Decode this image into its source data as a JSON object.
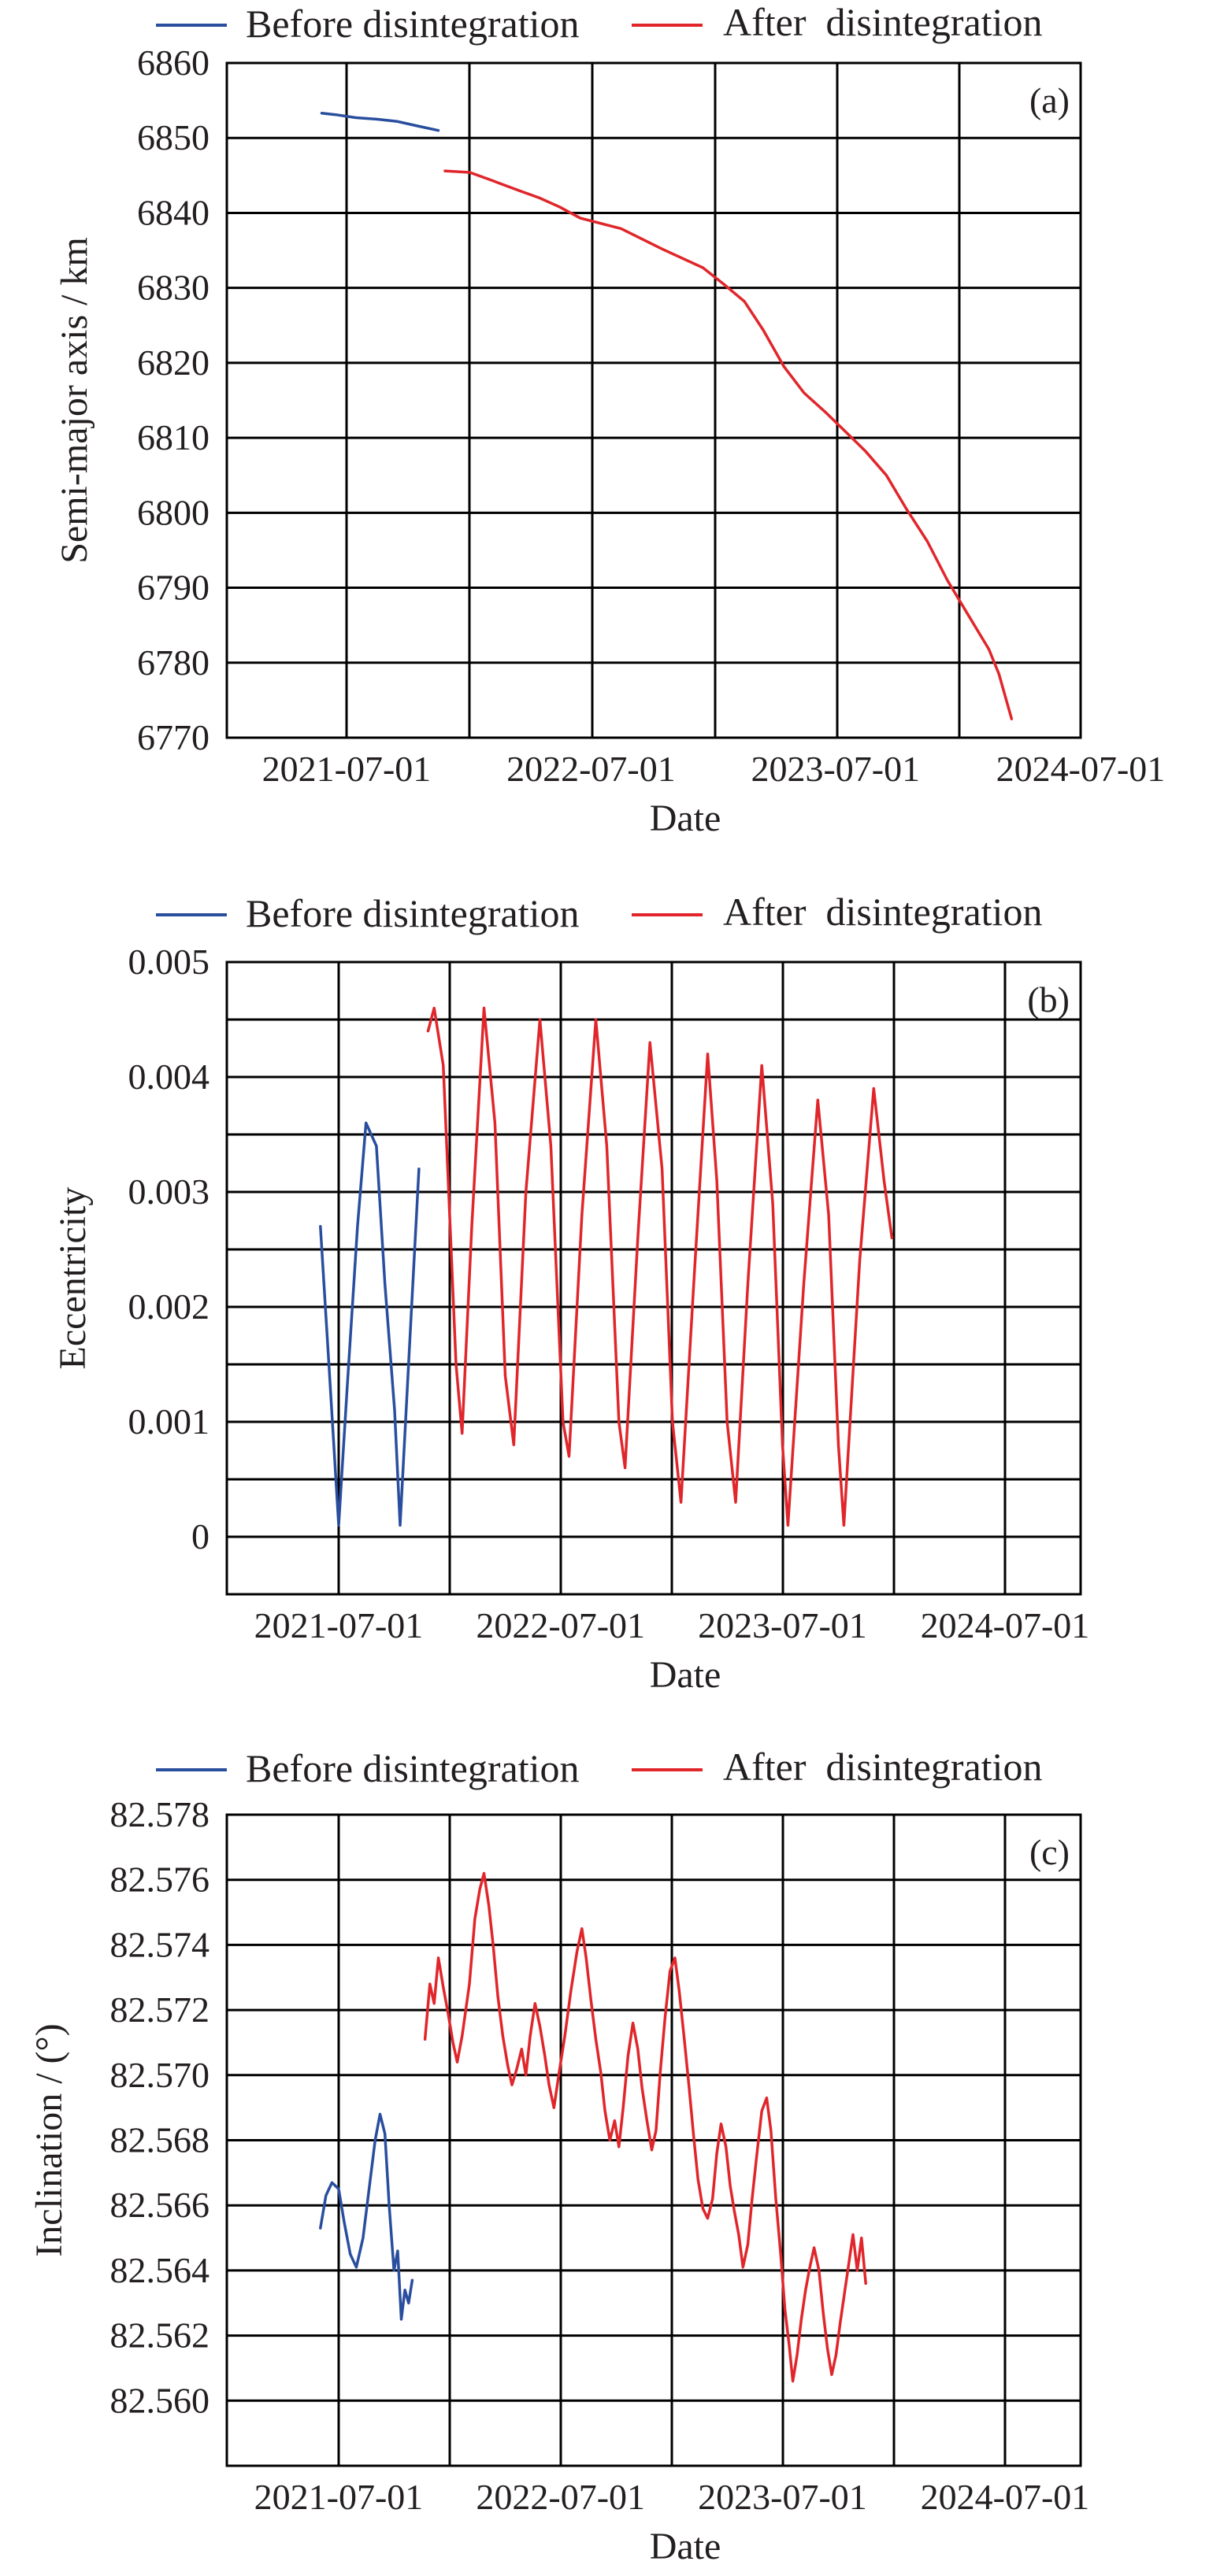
{
  "colors": {
    "before": "#2a4e9e",
    "after": "#e0262b",
    "axis": "#000000"
  },
  "chart_data": [
    {
      "type": "line",
      "panel": "(a)",
      "xlabel": "Date",
      "ylabel": "Semi-major axis / km",
      "x_ticks": [
        "2021-07-01",
        "2022-07-01",
        "2023-07-01",
        "2024-07-01"
      ],
      "ylim": [
        6770,
        6860
      ],
      "y_ticks": [
        "6770",
        "6780",
        "6790",
        "6800",
        "6810",
        "6820",
        "6830",
        "6840",
        "6850",
        "6860"
      ],
      "grid": true,
      "legend": "top",
      "series": [
        {
          "name": "Before disintegration",
          "color_key": "before",
          "points": [
            [
              "2021-05-25",
              6853.3
            ],
            [
              "2021-06-15",
              6853.1
            ],
            [
              "2021-07-15",
              6852.7
            ],
            [
              "2021-08-15",
              6852.5
            ],
            [
              "2021-09-15",
              6852.2
            ],
            [
              "2021-10-15",
              6851.6
            ],
            [
              "2021-11-15",
              6851.0
            ]
          ]
        },
        {
          "name": "After  disintegration",
          "color_key": "after",
          "points": [
            [
              "2021-11-25",
              6845.6
            ],
            [
              "2022-01-01",
              6845.4
            ],
            [
              "2022-02-01",
              6844.4
            ],
            [
              "2022-03-15",
              6843.0
            ],
            [
              "2022-04-15",
              6842.0
            ],
            [
              "2022-05-15",
              6840.8
            ],
            [
              "2022-06-15",
              6839.3
            ],
            [
              "2022-08-15",
              6837.9
            ],
            [
              "2022-10-15",
              6835.2
            ],
            [
              "2022-12-15",
              6832.7
            ],
            [
              "2023-01-15",
              6830.5
            ],
            [
              "2023-02-15",
              6828.2
            ],
            [
              "2023-03-15",
              6824.4
            ],
            [
              "2023-04-15",
              6819.5
            ],
            [
              "2023-05-15",
              6816.0
            ],
            [
              "2023-06-15",
              6813.5
            ],
            [
              "2023-07-15",
              6810.9
            ],
            [
              "2023-08-15",
              6808.2
            ],
            [
              "2023-09-15",
              6805.0
            ],
            [
              "2023-10-15",
              6800.5
            ],
            [
              "2023-11-15",
              6796.2
            ],
            [
              "2023-12-15",
              6791.0
            ],
            [
              "2024-01-15",
              6786.4
            ],
            [
              "2024-02-15",
              6781.8
            ],
            [
              "2024-03-01",
              6778.5
            ],
            [
              "2024-03-20",
              6772.5
            ]
          ]
        }
      ]
    },
    {
      "type": "line",
      "panel": "(b)",
      "xlabel": "Date",
      "ylabel": "Eccentricity",
      "x_ticks": [
        "2021-07-01",
        "2022-07-01",
        "2023-07-01",
        "2024-07-01"
      ],
      "ylim": [
        -0.0005,
        0.005
      ],
      "y_ticks": [
        "0",
        "0.001",
        "0.002",
        "0.003",
        "0.004",
        "0.005"
      ],
      "grid": true,
      "legend": "top",
      "series": [
        {
          "name": "Before disintegration",
          "color_key": "before",
          "points": [
            [
              "2021-06-01",
              0.0027
            ],
            [
              "2021-06-15",
              0.0015
            ],
            [
              "2021-07-01",
              0.0001
            ],
            [
              "2021-07-15",
              0.0013
            ],
            [
              "2021-08-01",
              0.0027
            ],
            [
              "2021-08-15",
              0.0036
            ],
            [
              "2021-09-01",
              0.0034
            ],
            [
              "2021-09-15",
              0.0022
            ],
            [
              "2021-10-01",
              0.0011
            ],
            [
              "2021-10-10",
              0.0001
            ],
            [
              "2021-10-25",
              0.0016
            ],
            [
              "2021-11-10",
              0.0032
            ]
          ]
        },
        {
          "name": "After  disintegration",
          "color_key": "after",
          "points": [
            [
              "2021-11-25",
              0.0044
            ],
            [
              "2021-12-05",
              0.0046
            ],
            [
              "2021-12-20",
              0.0041
            ],
            [
              "2022-01-10",
              0.0015
            ],
            [
              "2022-01-20",
              0.0009
            ],
            [
              "2022-02-05",
              0.0027
            ],
            [
              "2022-02-25",
              0.0046
            ],
            [
              "2022-03-15",
              0.0036
            ],
            [
              "2022-04-01",
              0.0014
            ],
            [
              "2022-04-15",
              0.0008
            ],
            [
              "2022-05-05",
              0.003
            ],
            [
              "2022-05-28",
              0.0045
            ],
            [
              "2022-06-15",
              0.0034
            ],
            [
              "2022-07-05",
              0.001
            ],
            [
              "2022-07-15",
              0.0007
            ],
            [
              "2022-08-05",
              0.0028
            ],
            [
              "2022-08-28",
              0.0045
            ],
            [
              "2022-09-15",
              0.0034
            ],
            [
              "2022-10-05",
              0.001
            ],
            [
              "2022-10-15",
              0.0006
            ],
            [
              "2022-11-05",
              0.0026
            ],
            [
              "2022-11-25",
              0.0043
            ],
            [
              "2022-12-15",
              0.0032
            ],
            [
              "2023-01-01",
              0.001
            ],
            [
              "2023-01-15",
              0.0003
            ],
            [
              "2023-02-05",
              0.0022
            ],
            [
              "2023-02-28",
              0.0042
            ],
            [
              "2023-03-15",
              0.0031
            ],
            [
              "2023-04-01",
              0.001
            ],
            [
              "2023-04-15",
              0.0003
            ],
            [
              "2023-05-05",
              0.0022
            ],
            [
              "2023-05-28",
              0.0041
            ],
            [
              "2023-06-15",
              0.0029
            ],
            [
              "2023-07-01",
              0.0008
            ],
            [
              "2023-07-10",
              0.0001
            ],
            [
              "2023-08-05",
              0.0022
            ],
            [
              "2023-08-28",
              0.0038
            ],
            [
              "2023-09-15",
              0.0028
            ],
            [
              "2023-10-01",
              0.0008
            ],
            [
              "2023-10-10",
              0.0001
            ],
            [
              "2023-11-05",
              0.0024
            ],
            [
              "2023-11-28",
              0.0039
            ],
            [
              "2023-12-15",
              0.0031
            ],
            [
              "2023-12-28",
              0.0026
            ]
          ]
        }
      ]
    },
    {
      "type": "line",
      "panel": "(c)",
      "xlabel": "Date",
      "ylabel": "Inclination / (°)",
      "x_ticks": [
        "2021-07-01",
        "2022-07-01",
        "2023-07-01",
        "2024-07-01"
      ],
      "ylim": [
        82.558,
        82.578
      ],
      "y_ticks": [
        "82.560",
        "82.562",
        "82.564",
        "82.566",
        "82.568",
        "82.570",
        "82.572",
        "82.574",
        "82.576",
        "82.578"
      ],
      "grid": true,
      "legend": "top",
      "series": [
        {
          "name": "Before disintegration",
          "color_key": "before",
          "points": [
            [
              "2021-06-01",
              82.5653
            ],
            [
              "2021-06-10",
              82.5663
            ],
            [
              "2021-06-20",
              82.5667
            ],
            [
              "2021-07-01",
              82.5665
            ],
            [
              "2021-07-10",
              82.5655
            ],
            [
              "2021-07-20",
              82.5645
            ],
            [
              "2021-07-30",
              82.5641
            ],
            [
              "2021-08-10",
              82.565
            ],
            [
              "2021-08-20",
              82.5665
            ],
            [
              "2021-08-30",
              82.568
            ],
            [
              "2021-09-07",
              82.5688
            ],
            [
              "2021-09-15",
              82.5682
            ],
            [
              "2021-09-22",
              82.566
            ],
            [
              "2021-09-30",
              82.564
            ],
            [
              "2021-10-06",
              82.5646
            ],
            [
              "2021-10-12",
              82.5625
            ],
            [
              "2021-10-18",
              82.5634
            ],
            [
              "2021-10-24",
              82.563
            ],
            [
              "2021-10-30",
              82.5637
            ]
          ]
        },
        {
          "name": "After  disintegration",
          "color_key": "after",
          "points": [
            [
              "2021-11-20",
              82.5711
            ],
            [
              "2021-11-28",
              82.5728
            ],
            [
              "2021-12-05",
              82.5722
            ],
            [
              "2021-12-12",
              82.5736
            ],
            [
              "2021-12-20",
              82.5727
            ],
            [
              "2021-12-28",
              82.5719
            ],
            [
              "2022-01-05",
              82.571
            ],
            [
              "2022-01-12",
              82.5704
            ],
            [
              "2022-01-20",
              82.5712
            ],
            [
              "2022-02-01",
              82.5728
            ],
            [
              "2022-02-10",
              82.5748
            ],
            [
              "2022-02-18",
              82.5757
            ],
            [
              "2022-02-25",
              82.5762
            ],
            [
              "2022-03-05",
              82.5752
            ],
            [
              "2022-03-12",
              82.574
            ],
            [
              "2022-03-20",
              82.5724
            ],
            [
              "2022-03-28",
              82.5712
            ],
            [
              "2022-04-05",
              82.5703
            ],
            [
              "2022-04-12",
              82.5697
            ],
            [
              "2022-04-20",
              82.5702
            ],
            [
              "2022-04-28",
              82.5708
            ],
            [
              "2022-05-05",
              82.57
            ],
            [
              "2022-05-12",
              82.5712
            ],
            [
              "2022-05-20",
              82.5722
            ],
            [
              "2022-05-28",
              82.5715
            ],
            [
              "2022-06-05",
              82.5706
            ],
            [
              "2022-06-12",
              82.5697
            ],
            [
              "2022-06-20",
              82.569
            ],
            [
              "2022-06-28",
              82.57
            ],
            [
              "2022-07-08",
              82.5712
            ],
            [
              "2022-07-18",
              82.5726
            ],
            [
              "2022-07-28",
              82.5738
            ],
            [
              "2022-08-05",
              82.5745
            ],
            [
              "2022-08-12",
              82.5736
            ],
            [
              "2022-08-20",
              82.5723
            ],
            [
              "2022-08-28",
              82.5711
            ],
            [
              "2022-09-05",
              82.5701
            ],
            [
              "2022-09-12",
              82.5689
            ],
            [
              "2022-09-20",
              82.568
            ],
            [
              "2022-09-28",
              82.5686
            ],
            [
              "2022-10-05",
              82.5678
            ],
            [
              "2022-10-12",
              82.569
            ],
            [
              "2022-10-20",
              82.5706
            ],
            [
              "2022-10-28",
              82.5716
            ],
            [
              "2022-11-05",
              82.5708
            ],
            [
              "2022-11-12",
              82.5696
            ],
            [
              "2022-11-20",
              82.5686
            ],
            [
              "2022-11-28",
              82.5677
            ],
            [
              "2022-12-05",
              82.5683
            ],
            [
              "2022-12-12",
              82.5701
            ],
            [
              "2022-12-20",
              82.5718
            ],
            [
              "2022-12-28",
              82.5732
            ],
            [
              "2023-01-05",
              82.5736
            ],
            [
              "2023-01-12",
              82.5726
            ],
            [
              "2023-01-20",
              82.5712
            ],
            [
              "2023-01-28",
              82.5697
            ],
            [
              "2023-02-05",
              82.5681
            ],
            [
              "2023-02-12",
              82.5668
            ],
            [
              "2023-02-20",
              82.5659
            ],
            [
              "2023-02-28",
              82.5656
            ],
            [
              "2023-03-08",
              82.5662
            ],
            [
              "2023-03-15",
              82.5676
            ],
            [
              "2023-03-22",
              82.5685
            ],
            [
              "2023-03-30",
              82.5678
            ],
            [
              "2023-04-06",
              82.5666
            ],
            [
              "2023-04-13",
              82.5658
            ],
            [
              "2023-04-20",
              82.5651
            ],
            [
              "2023-04-27",
              82.5641
            ],
            [
              "2023-05-05",
              82.5648
            ],
            [
              "2023-05-12",
              82.5662
            ],
            [
              "2023-05-20",
              82.5676
            ],
            [
              "2023-05-28",
              82.5689
            ],
            [
              "2023-06-05",
              82.5693
            ],
            [
              "2023-06-12",
              82.5683
            ],
            [
              "2023-06-20",
              82.5662
            ],
            [
              "2023-06-28",
              82.5645
            ],
            [
              "2023-07-05",
              82.5628
            ],
            [
              "2023-07-12",
              82.5617
            ],
            [
              "2023-07-18",
              82.5606
            ],
            [
              "2023-07-25",
              82.5614
            ],
            [
              "2023-08-01",
              82.5625
            ],
            [
              "2023-08-08",
              82.5634
            ],
            [
              "2023-08-15",
              82.5641
            ],
            [
              "2023-08-22",
              82.5647
            ],
            [
              "2023-08-30",
              82.564
            ],
            [
              "2023-09-06",
              82.5627
            ],
            [
              "2023-09-13",
              82.5616
            ],
            [
              "2023-09-20",
              82.5608
            ],
            [
              "2023-09-27",
              82.5614
            ],
            [
              "2023-10-04",
              82.5624
            ],
            [
              "2023-10-11",
              82.5633
            ],
            [
              "2023-10-18",
              82.5642
            ],
            [
              "2023-10-25",
              82.5651
            ],
            [
              "2023-11-01",
              82.564
            ],
            [
              "2023-11-08",
              82.565
            ],
            [
              "2023-11-15",
              82.5636
            ]
          ]
        }
      ]
    }
  ]
}
